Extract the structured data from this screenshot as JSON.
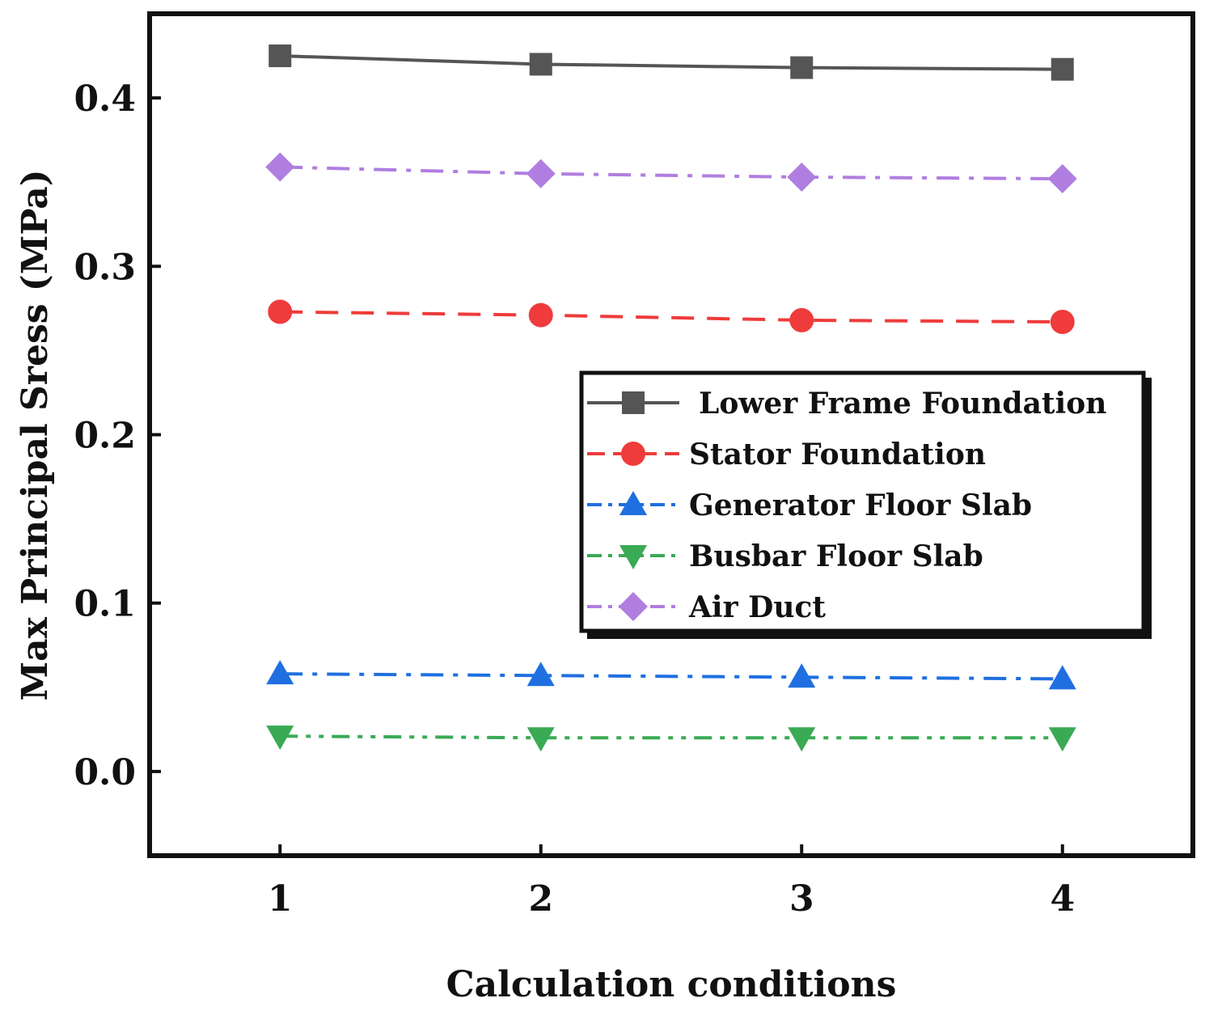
{
  "chart_data": {
    "type": "line",
    "title": "",
    "xlabel": "Calculation conditions",
    "ylabel": "Max Principal Sress (MPa)",
    "x": [
      1,
      2,
      3,
      4
    ],
    "xticks": [
      "1",
      "2",
      "3",
      "4"
    ],
    "xlim": [
      0.5,
      4.5
    ],
    "ylim": [
      -0.05,
      0.45
    ],
    "yticks": [
      "0.0",
      "0.1",
      "0.2",
      "0.3",
      "0.4"
    ],
    "ytick_values": [
      0.0,
      0.1,
      0.2,
      0.3,
      0.4
    ],
    "grid": false,
    "legend_position": "center-right",
    "series": [
      {
        "name": "Lower Frame Foundation",
        "values": [
          0.425,
          0.42,
          0.418,
          0.417
        ],
        "color": "#555555",
        "marker": "square",
        "dash": "solid"
      },
      {
        "name": "Stator Foundation",
        "values": [
          0.273,
          0.271,
          0.268,
          0.267
        ],
        "color": "#ef3b3b",
        "marker": "circle",
        "dash": "dash"
      },
      {
        "name": "Generator Floor Slab",
        "values": [
          0.058,
          0.057,
          0.056,
          0.055
        ],
        "color": "#1f6fe0",
        "marker": "triangle-up",
        "dash": "dashdot"
      },
      {
        "name": "Busbar Floor Slab",
        "values": [
          0.021,
          0.02,
          0.02,
          0.02
        ],
        "color": "#3aaa55",
        "marker": "triangle-down",
        "dash": "dashdotdot"
      },
      {
        "name": "Air Duct",
        "values": [
          0.359,
          0.355,
          0.353,
          0.352
        ],
        "color": "#b07ee0",
        "marker": "diamond",
        "dash": "dashdot"
      }
    ]
  }
}
